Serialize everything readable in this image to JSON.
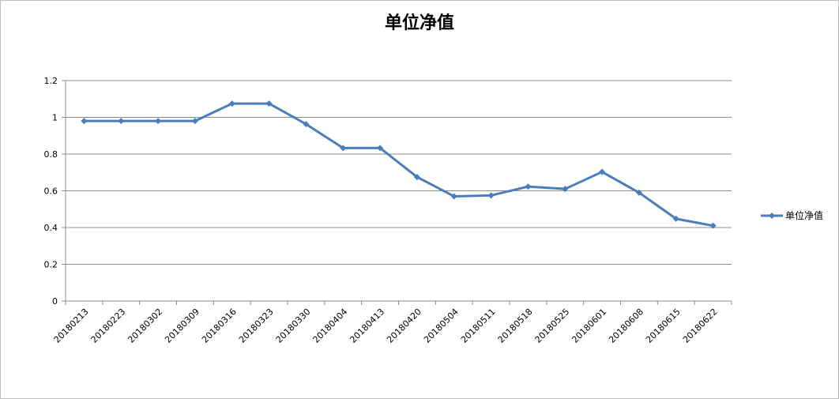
{
  "chart_data": {
    "type": "line",
    "title": "单位净值",
    "xlabel": "",
    "ylabel": "",
    "categories": [
      "20180213",
      "20180223",
      "20180302",
      "20180309",
      "20180316",
      "20180323",
      "20180330",
      "20180404",
      "20180413",
      "20180420",
      "20180504",
      "20180511",
      "20180518",
      "20180525",
      "20180601",
      "20180608",
      "20180615",
      "20180622"
    ],
    "series": [
      {
        "name": "单位净值",
        "color": "#4a7ebb",
        "values": [
          0.98,
          0.98,
          0.98,
          0.98,
          1.075,
          1.075,
          0.963,
          0.833,
          0.833,
          0.675,
          0.57,
          0.575,
          0.623,
          0.61,
          0.703,
          0.59,
          0.448,
          0.41
        ]
      }
    ],
    "ylim": [
      0,
      1.2
    ],
    "yticks": [
      "0",
      "0.2",
      "0.4",
      "0.6",
      "0.8",
      "1",
      "1.2"
    ],
    "grid": "horizontal",
    "legend": "right"
  }
}
